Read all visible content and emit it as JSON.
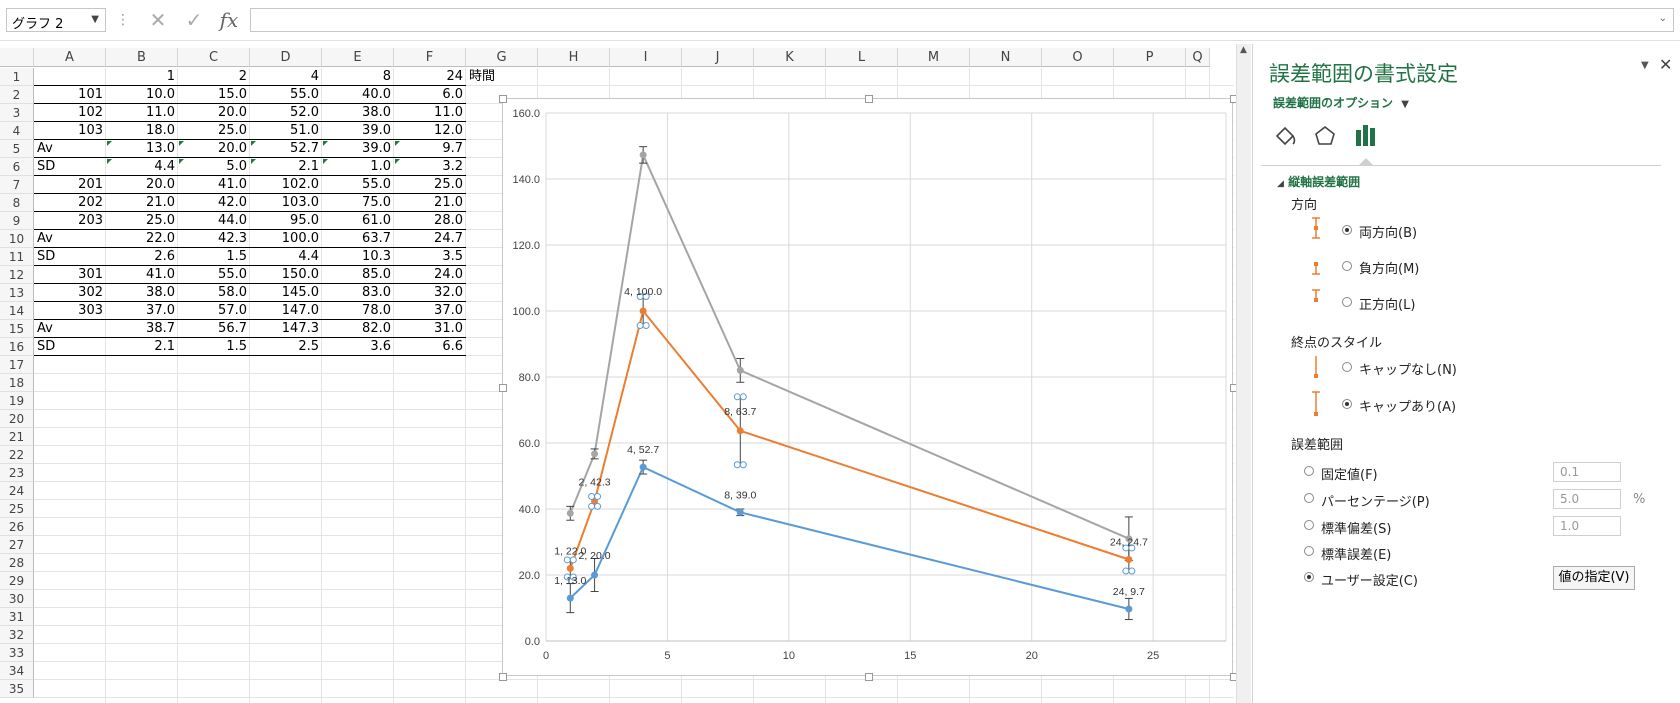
{
  "formula_bar": {
    "name_box": "グラフ 2",
    "function_icon": "fx",
    "formula_value": ""
  },
  "sheet": {
    "columns": [
      "A",
      "B",
      "C",
      "D",
      "E",
      "F",
      "G",
      "H",
      "I",
      "J",
      "K",
      "L",
      "M",
      "N",
      "O",
      "P",
      "Q"
    ],
    "rows": [
      "1",
      "2",
      "3",
      "4",
      "5",
      "6",
      "7",
      "8",
      "9",
      "10",
      "11",
      "12",
      "13",
      "14",
      "15",
      "16",
      "17",
      "18",
      "19",
      "20",
      "21",
      "22",
      "23",
      "24",
      "25",
      "26",
      "27",
      "28",
      "29",
      "30",
      "31",
      "32",
      "33",
      "34",
      "35"
    ],
    "data": [
      [
        "",
        "1",
        "2",
        "4",
        "8",
        "24",
        "時間"
      ],
      [
        "101",
        "10.0",
        "15.0",
        "55.0",
        "40.0",
        "6.0"
      ],
      [
        "102",
        "11.0",
        "20.0",
        "52.0",
        "38.0",
        "11.0"
      ],
      [
        "103",
        "18.0",
        "25.0",
        "51.0",
        "39.0",
        "12.0"
      ],
      [
        "Av",
        "13.0",
        "20.0",
        "52.7",
        "39.0",
        "9.7"
      ],
      [
        "SD",
        "4.4",
        "5.0",
        "2.1",
        "1.0",
        "3.2"
      ],
      [
        "201",
        "20.0",
        "41.0",
        "102.0",
        "55.0",
        "25.0"
      ],
      [
        "202",
        "21.0",
        "42.0",
        "103.0",
        "75.0",
        "21.0"
      ],
      [
        "203",
        "25.0",
        "44.0",
        "95.0",
        "61.0",
        "28.0"
      ],
      [
        "Av",
        "22.0",
        "42.3",
        "100.0",
        "63.7",
        "24.7"
      ],
      [
        "SD",
        "2.6",
        "1.5",
        "4.4",
        "10.3",
        "3.5"
      ],
      [
        "301",
        "41.0",
        "55.0",
        "150.0",
        "85.0",
        "24.0"
      ],
      [
        "302",
        "38.0",
        "58.0",
        "145.0",
        "83.0",
        "32.0"
      ],
      [
        "303",
        "37.0",
        "57.0",
        "147.0",
        "78.0",
        "37.0"
      ],
      [
        "Av",
        "38.7",
        "56.7",
        "147.3",
        "82.0",
        "31.0"
      ],
      [
        "SD",
        "2.1",
        "1.5",
        "2.5",
        "3.6",
        "6.6"
      ]
    ]
  },
  "chart_data": {
    "type": "scatter",
    "xlim": [
      0,
      28
    ],
    "ylim": [
      0,
      160
    ],
    "x_ticks": [
      "0",
      "5",
      "10",
      "15",
      "20",
      "25"
    ],
    "y_ticks": [
      "0.0",
      "20.0",
      "40.0",
      "60.0",
      "80.0",
      "100.0",
      "120.0",
      "140.0",
      "160.0"
    ],
    "grid": true,
    "series": [
      {
        "color": "#5b9bd5",
        "x": [
          1,
          2,
          4,
          8,
          24
        ],
        "y": [
          13.0,
          20.0,
          52.7,
          39.0,
          9.7
        ],
        "err": [
          4.4,
          5.0,
          2.1,
          1.0,
          3.2
        ],
        "labels": [
          "1, 13.0",
          "2, 20.0",
          "4, 52.7",
          "8, 39.0",
          "24, 9.7"
        ]
      },
      {
        "color": "#ed7d31",
        "x": [
          1,
          2,
          4,
          8,
          24
        ],
        "y": [
          22.0,
          42.3,
          100.0,
          63.7,
          24.7
        ],
        "err": [
          2.6,
          1.5,
          4.4,
          10.3,
          3.5
        ],
        "labels": [
          "1, 22.0",
          "2, 42.3",
          "4, 100.0",
          "8, 63.7",
          "24, 24.7"
        ]
      },
      {
        "color": "#a5a5a5",
        "x": [
          1,
          2,
          4,
          8,
          24
        ],
        "y": [
          38.7,
          56.7,
          147.3,
          82.0,
          31.0
        ],
        "err": [
          2.1,
          1.5,
          2.5,
          3.6,
          6.6
        ],
        "labels": []
      }
    ]
  },
  "pane": {
    "title": "誤差範囲の書式設定",
    "options_label": "誤差範囲のオプション",
    "section": "縦軸誤差範囲",
    "direction_label": "方向",
    "direction_options": [
      "両方向(B)",
      "負方向(M)",
      "正方向(L)"
    ],
    "end_style_label": "終点のスタイル",
    "end_style_options": [
      "キャップなし(N)",
      "キャップあり(A)"
    ],
    "error_amount_label": "誤差範囲",
    "amount_options": [
      "固定値(F)",
      "パーセンテージ(P)",
      "標準偏差(S)",
      "標準誤差(E)",
      "ユーザー設定(C)"
    ],
    "fixed_value": "0.1",
    "percentage_value": "5.0",
    "percent_unit": "%",
    "stddev_value": "1.0",
    "specify_button": "値の指定(V)",
    "accent_color": "#217346"
  }
}
